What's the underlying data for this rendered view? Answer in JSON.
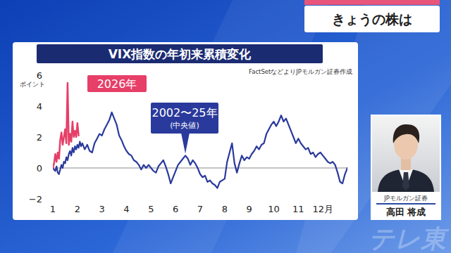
{
  "page": {
    "segment_title": "きょうの株は",
    "guest_company": "JPモルガン証券",
    "guest_name": "高田 将成",
    "watermark": "テレ東"
  },
  "chart_data": {
    "type": "line",
    "title": "VIX指数の年初来累積変化",
    "source": "FactSetなどよりJPモルガン証券作成",
    "y_label": "ポイント",
    "xlim": [
      1,
      13
    ],
    "xticks": [
      1,
      2,
      3,
      4,
      5,
      6,
      7,
      8,
      9,
      10,
      11,
      {
        "value": 12,
        "label": "12月"
      }
    ],
    "ylim": [
      -2,
      6
    ],
    "yticks": [
      {
        "value": -2,
        "label": "−2"
      },
      0,
      2,
      4,
      6
    ],
    "grid": false,
    "x": [
      1,
      1.05,
      1.1,
      1.15,
      1.2,
      1.25,
      1.3,
      1.35,
      1.4,
      1.45,
      1.5,
      1.55,
      1.6,
      1.65,
      1.7,
      1.75,
      1.8,
      1.85,
      1.9,
      1.95,
      2,
      2.05,
      2.1,
      2.15,
      2.2,
      2.3,
      2.4,
      2.5,
      2.6,
      2.7,
      2.8,
      2.9,
      3,
      3.1,
      3.2,
      3.3,
      3.4,
      3.5,
      3.6,
      3.7,
      3.8,
      3.9,
      4,
      4.1,
      4.2,
      4.3,
      4.4,
      4.5,
      4.6,
      4.7,
      4.8,
      4.9,
      5,
      5.1,
      5.2,
      5.3,
      5.4,
      5.5,
      5.6,
      5.7,
      5.8,
      5.9,
      6,
      6.1,
      6.2,
      6.3,
      6.4,
      6.5,
      6.6,
      6.7,
      6.8,
      6.9,
      7,
      7.1,
      7.2,
      7.3,
      7.4,
      7.5,
      7.6,
      7.7,
      7.8,
      7.9,
      8,
      8.1,
      8.2,
      8.3,
      8.4,
      8.5,
      8.6,
      8.7,
      8.8,
      8.9,
      9,
      9.1,
      9.2,
      9.3,
      9.4,
      9.5,
      9.6,
      9.7,
      9.8,
      9.9,
      10,
      10.1,
      10.2,
      10.3,
      10.4,
      10.5,
      10.6,
      10.7,
      10.8,
      10.9,
      11,
      11.1,
      11.2,
      11.3,
      11.4,
      11.5,
      11.6,
      11.7,
      11.8,
      11.9,
      12,
      12.1,
      12.2,
      12.3,
      12.4,
      12.5,
      12.6,
      12.7,
      12.8,
      12.9,
      13
    ],
    "series": [
      {
        "name": "2002〜25年 (中央値)",
        "color": "#2a3a9c",
        "values": [
          0,
          -0.1,
          -0.2,
          0.1,
          -0.3,
          -0.4,
          -0.1,
          0.2,
          0,
          0.4,
          0.3,
          0.7,
          0.5,
          0.9,
          1.1,
          0.8,
          1.3,
          1.0,
          1.4,
          1.2,
          1.5,
          1.3,
          1.7,
          1.4,
          1.6,
          1.2,
          1.5,
          1.1,
          1.0,
          1.6,
          1.9,
          2.2,
          2.1,
          2.5,
          2.8,
          3.1,
          3.6,
          3.2,
          2.8,
          2.1,
          1.8,
          1.4,
          1.1,
          0.9,
          0.8,
          0.5,
          0.4,
          0.2,
          -0.1,
          0.2,
          0,
          0.2,
          0,
          -0.2,
          -0.3,
          0.1,
          0.3,
          0.5,
          0.1,
          -0.4,
          -1.0,
          -0.6,
          -0.2,
          0.2,
          0.4,
          0.6,
          0.8,
          0.6,
          0.2,
          0.5,
          0.3,
          0,
          -0.4,
          -0.6,
          -0.5,
          -0.9,
          -0.8,
          -1.0,
          -1.1,
          -1.3,
          -0.9,
          -0.8,
          -0.7,
          0.4,
          1.0,
          1.6,
          0.3,
          -0.3,
          0.3,
          0.8,
          0.5,
          0.7,
          0.6,
          0.9,
          1.1,
          1.4,
          1.2,
          1.5,
          1.6,
          2.2,
          2.5,
          2.8,
          3.0,
          2.7,
          3.0,
          3.4,
          3.0,
          3.2,
          2.8,
          2.4,
          2.0,
          1.6,
          1.9,
          1.6,
          1.4,
          1.2,
          1.3,
          0.9,
          1.0,
          0.7,
          0.9,
          1.0,
          0.8,
          0.6,
          0.4,
          0.3,
          0.4,
          0.2,
          -0.3,
          -0.9,
          -1.0,
          -0.4,
          0
        ]
      },
      {
        "name": "2026年",
        "color": "#e63f68",
        "values": [
          0,
          0.3,
          0.9,
          0.4,
          1.0,
          0.6,
          1.8,
          2.3,
          1.5,
          2.0,
          2.5,
          1.6,
          5.5,
          1.5,
          2.2,
          1.7,
          3.0,
          2.0,
          2.4,
          2.0,
          2.9,
          2.1,
          null,
          null,
          null,
          null,
          null,
          null,
          null,
          null,
          null,
          null,
          null,
          null,
          null,
          null,
          null,
          null,
          null,
          null,
          null,
          null,
          null,
          null,
          null,
          null,
          null,
          null,
          null,
          null,
          null,
          null,
          null,
          null,
          null,
          null,
          null,
          null,
          null,
          null,
          null,
          null,
          null,
          null,
          null,
          null,
          null,
          null,
          null,
          null,
          null,
          null,
          null,
          null,
          null,
          null,
          null,
          null,
          null,
          null,
          null,
          null,
          null,
          null,
          null,
          null,
          null,
          null,
          null,
          null,
          null,
          null,
          null,
          null,
          null,
          null,
          null,
          null,
          null,
          null,
          null,
          null,
          null,
          null,
          null,
          null,
          null,
          null,
          null,
          null,
          null,
          null,
          null,
          null,
          null,
          null,
          null,
          null,
          null,
          null,
          null,
          null,
          null,
          null,
          null,
          null,
          null,
          null,
          null,
          null,
          null,
          null,
          null
        ]
      }
    ]
  }
}
